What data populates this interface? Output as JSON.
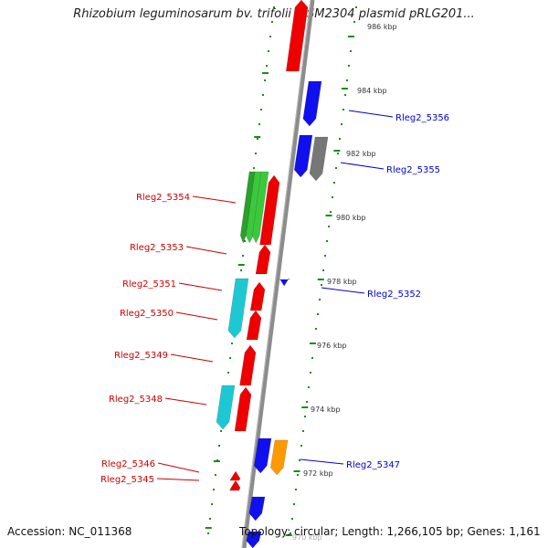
{
  "title": "Rhizobium leguminosarum bv. trifolii WSM2304 plasmid pRLG201...",
  "footer": {
    "accession": "Accession: NC_011368",
    "info": "Topology: circular; Length: 1,266,105 bp; Genes: 1,161"
  },
  "colors": {
    "backbone": "#8c8c8c",
    "tick": "#1a8c1a",
    "label_left": "#cc0000",
    "label_right": "#0000cc",
    "red": "#ee0000",
    "blue": "#1010ee",
    "cyan": "#1ec8d2",
    "green": "#3cc83c",
    "gray": "#777777",
    "orange": "#ff9900"
  },
  "kbp_labels": [
    "986 kbp",
    "984 kbp",
    "982 kbp",
    "980 kbp",
    "978 kbp",
    "976 kbp",
    "974 kbp",
    "972 kbp",
    "970 kbp"
  ],
  "gene_labels_left": [
    "Rleg2_5354",
    "Rleg2_5353",
    "Rleg2_5351",
    "Rleg2_5350",
    "Rleg2_5349",
    "Rleg2_5348",
    "Rleg2_5346",
    "Rleg2_5345"
  ],
  "gene_labels_right": [
    "Rleg2_5356",
    "Rleg2_5355",
    "Rleg2_5352",
    "Rleg2_5347"
  ]
}
